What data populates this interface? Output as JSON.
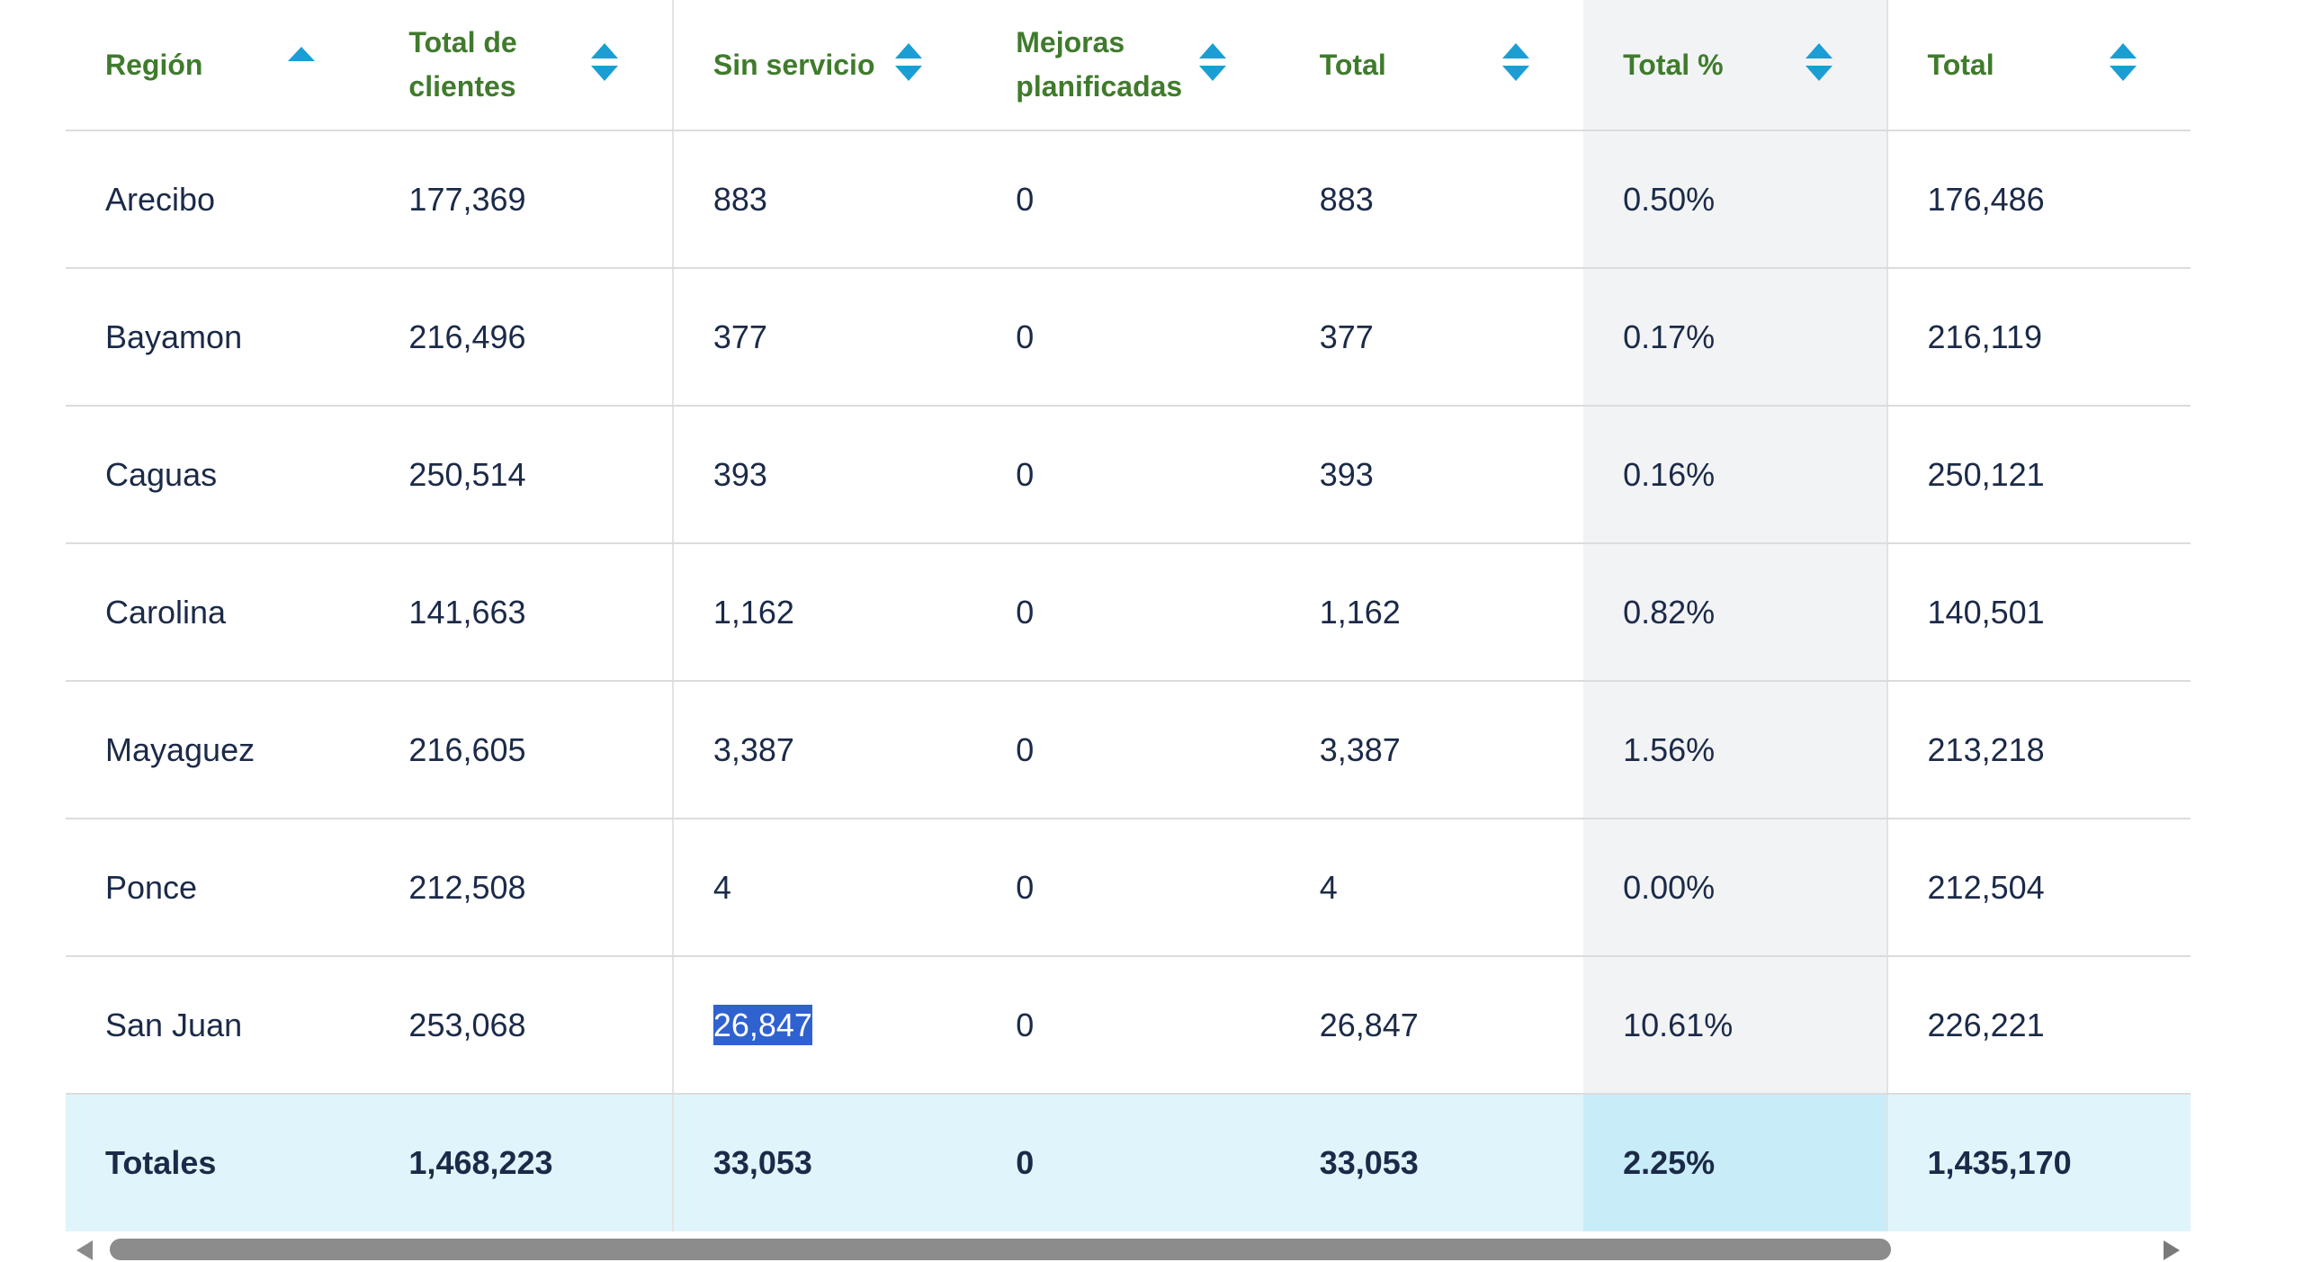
{
  "table": {
    "columns": [
      {
        "label": "Región",
        "sort": "up"
      },
      {
        "label": "Total de clientes",
        "sort": "both"
      },
      {
        "label": "Sin servicio",
        "sort": "both"
      },
      {
        "label": "Mejoras planificadas",
        "sort": "both"
      },
      {
        "label": "Total",
        "sort": "both"
      },
      {
        "label": "Total %",
        "sort": "both"
      },
      {
        "label": "Total",
        "sort": "both"
      }
    ],
    "rows": [
      [
        "Arecibo",
        "177,369",
        "883",
        "0",
        "883",
        "0.50%",
        "176,486"
      ],
      [
        "Bayamon",
        "216,496",
        "377",
        "0",
        "377",
        "0.17%",
        "216,119"
      ],
      [
        "Caguas",
        "250,514",
        "393",
        "0",
        "393",
        "0.16%",
        "250,121"
      ],
      [
        "Carolina",
        "141,663",
        "1,162",
        "0",
        "1,162",
        "0.82%",
        "140,501"
      ],
      [
        "Mayaguez",
        "216,605",
        "3,387",
        "0",
        "3,387",
        "1.56%",
        "213,218"
      ],
      [
        "Ponce",
        "212,508",
        "4",
        "0",
        "4",
        "0.00%",
        "212,504"
      ],
      [
        "San Juan",
        "253,068",
        "26,847",
        "0",
        "26,847",
        "10.61%",
        "226,221"
      ]
    ],
    "totals": [
      "Totales",
      "1,468,223",
      "33,053",
      "0",
      "33,053",
      "2.25%",
      "1,435,170"
    ],
    "selected_cell": {
      "row": 6,
      "col": 2
    }
  },
  "colors": {
    "header_text": "#3f7b2c",
    "sort_icon": "#1a9ed4",
    "body_text": "#1b2a48",
    "highlight_column": "#f2f3f5",
    "totals_row": "#e0f5fb",
    "selection": "#2f62cf"
  }
}
